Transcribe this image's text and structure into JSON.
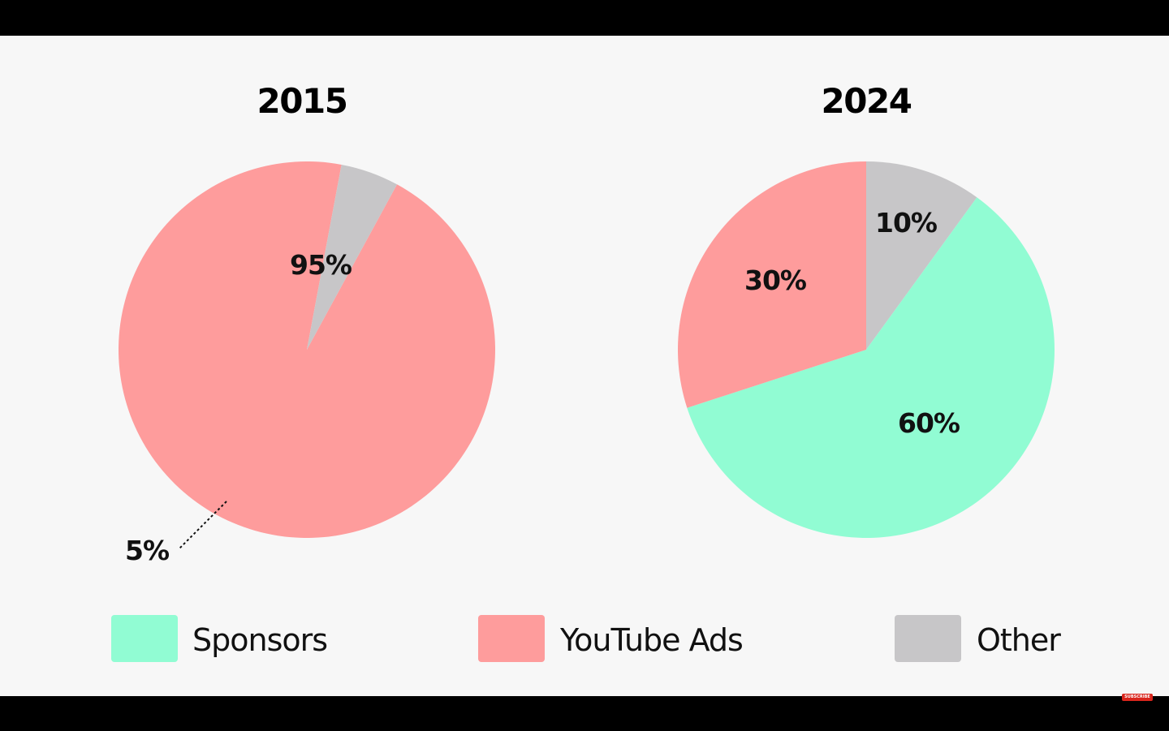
{
  "chart_data": [
    {
      "type": "pie",
      "title": "2015",
      "slices": [
        {
          "category": "YouTube Ads",
          "value": 95,
          "label": "95%"
        },
        {
          "category": "Other",
          "value": 5,
          "label": "5%"
        }
      ]
    },
    {
      "type": "pie",
      "title": "2024",
      "slices": [
        {
          "category": "Other",
          "value": 10,
          "label": "10%"
        },
        {
          "category": "Sponsors",
          "value": 60,
          "label": "60%"
        },
        {
          "category": "YouTube Ads",
          "value": 30,
          "label": "30%"
        }
      ]
    }
  ],
  "legend": [
    {
      "label": "Sponsors",
      "color": "#91fcd3"
    },
    {
      "label": "YouTube Ads",
      "color": "#fe9c9c"
    },
    {
      "label": "Other",
      "color": "#c7c6c8"
    }
  ],
  "colors": {
    "Sponsors": "#91fcd3",
    "YouTube Ads": "#fe9c9c",
    "Other": "#c7c6c8"
  },
  "player": {
    "subscribe_label": "SUBSCRIBE"
  }
}
